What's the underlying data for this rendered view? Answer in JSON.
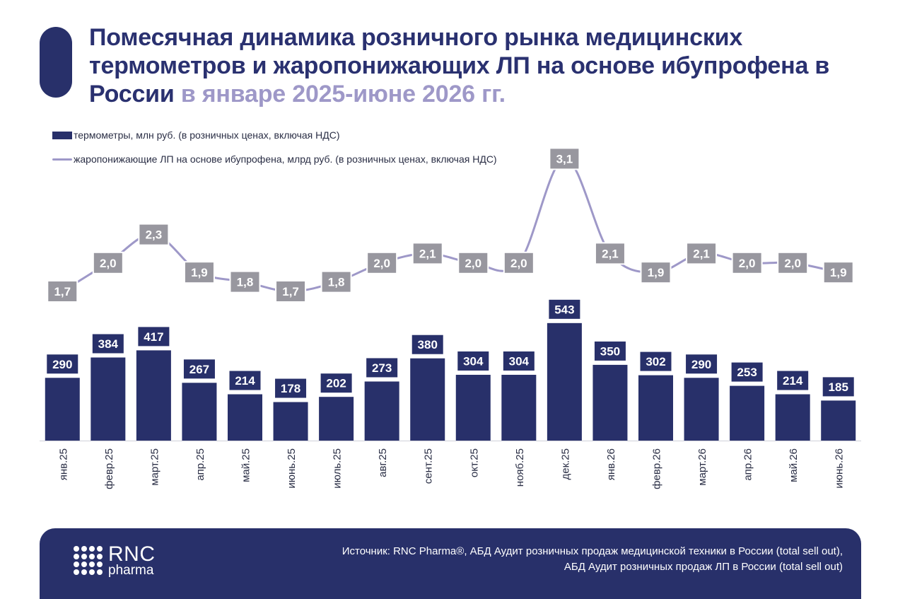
{
  "header": {
    "title_main": "Помесячная динамика розничного рынка медицинских термометров и жаропонижающих ЛП на основе ибупрофена в России",
    "title_highlight": "в январе 2025-июне 2026 гг."
  },
  "chart_data": {
    "type": "bar",
    "categories": [
      "янв.25",
      "февр.25",
      "март.25",
      "апр.25",
      "май.25",
      "июнь.25",
      "июль.25",
      "авг.25",
      "сент.25",
      "окт.25",
      "нояб.25",
      "дек.25",
      "янв.26",
      "февр.26",
      "март.26",
      "апр.26",
      "май.26",
      "июнь.26"
    ],
    "series": [
      {
        "name": "термометры, млн руб. (в розничных ценах, включая НДС)",
        "type": "bar",
        "values": [
          290,
          384,
          417,
          267,
          214,
          178,
          202,
          273,
          380,
          304,
          304,
          543,
          350,
          302,
          290,
          253,
          214,
          185
        ],
        "labels": [
          "290",
          "384",
          "417",
          "267",
          "214",
          "178",
          "202",
          "273",
          "380",
          "304",
          "304",
          "543",
          "350",
          "302",
          "290",
          "253",
          "214",
          "185"
        ]
      },
      {
        "name": "жаропонижающие ЛП на основе ибупрофена, млрд руб. (в розничных ценах, включая НДС)",
        "type": "line",
        "values": [
          1.7,
          2.0,
          2.3,
          1.9,
          1.8,
          1.7,
          1.8,
          2.0,
          2.1,
          2.0,
          2.0,
          3.1,
          2.1,
          1.9,
          2.1,
          2.0,
          2.0,
          1.9
        ],
        "labels": [
          "1,7",
          "2,0",
          "2,3",
          "1,9",
          "1,8",
          "1,7",
          "1,8",
          "2,0",
          "2,1",
          "2,0",
          "2,0",
          "3,1",
          "2,1",
          "1,9",
          "2,1",
          "2,0",
          "2,0",
          "1,9"
        ]
      }
    ],
    "legend_position": "top-left",
    "grid": false,
    "colors": {
      "bar": "#28306a",
      "line": "#9e98c8",
      "line_label_bg": "#98979f"
    }
  },
  "footer": {
    "logo_rnc": "RNC",
    "logo_pharma": "pharma",
    "source_line1": "Источник: RNC Pharma®, АБД Аудит розничных продаж медицинской техники в России (total sell out),",
    "source_line2": "АБД Аудит розничных продаж ЛП в России (total sell out)"
  }
}
